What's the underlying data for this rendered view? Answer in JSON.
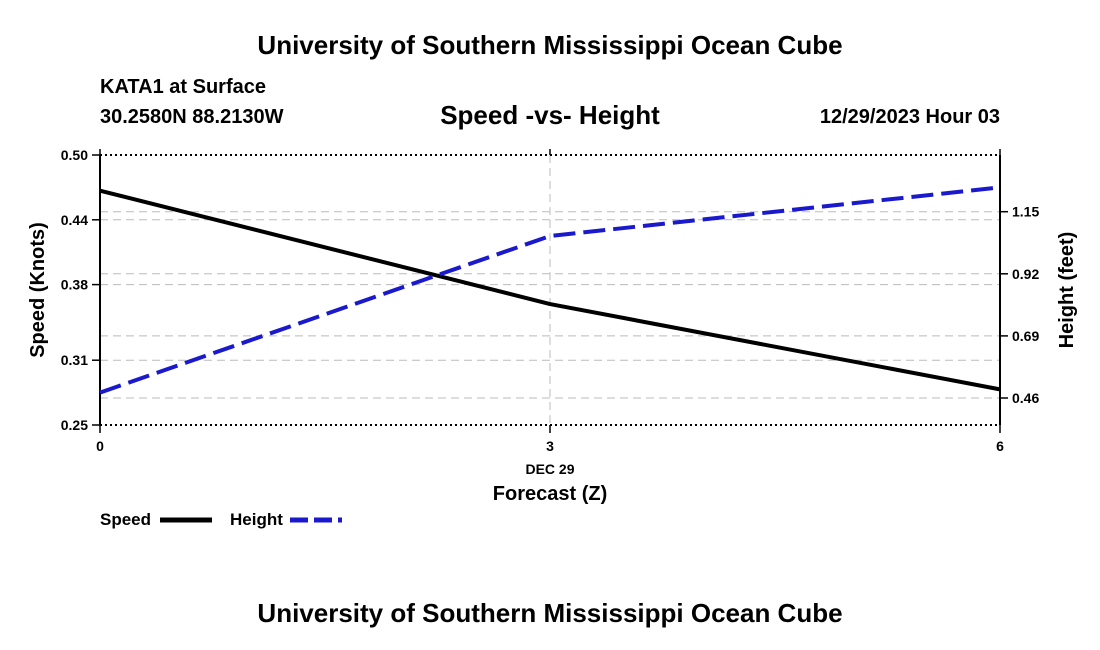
{
  "header": {
    "title": "University of Southern Mississippi Ocean Cube",
    "station": "KATA1 at Surface",
    "coords": "30.2580N  88.2130W",
    "subtitle": "Speed -vs- Height",
    "datetime": "12/29/2023 Hour 03"
  },
  "footer": {
    "title": "University of Southern Mississippi Ocean Cube"
  },
  "chart_data": {
    "type": "line",
    "title": "Speed -vs- Height",
    "xlabel": "Forecast (Z)",
    "x_date_label": "DEC 29",
    "x": [
      0,
      3,
      6
    ],
    "xlim": [
      0,
      6
    ],
    "x_ticks": [
      "0",
      "3",
      "6"
    ],
    "y_left": {
      "label": "Speed (Knots)",
      "lim": [
        0.25,
        0.5
      ],
      "ticks": [
        "0.25",
        "0.31",
        "0.38",
        "0.44",
        "0.50"
      ]
    },
    "y_right": {
      "label": "Height (feet)",
      "lim": [
        0.36,
        1.36
      ],
      "ticks": [
        "0.46",
        "0.69",
        "0.92",
        "1.15"
      ]
    },
    "series": [
      {
        "name": "Speed",
        "axis": "left",
        "color": "#000000",
        "style": "solid",
        "values": [
          0.467,
          0.362,
          0.283
        ]
      },
      {
        "name": "Height",
        "axis": "right",
        "color": "#1a1acc",
        "style": "dashed",
        "values": [
          0.48,
          1.06,
          1.24
        ]
      }
    ],
    "legend": {
      "position": "bottom-left",
      "items": [
        "Speed",
        "Height"
      ]
    },
    "grid": true
  }
}
